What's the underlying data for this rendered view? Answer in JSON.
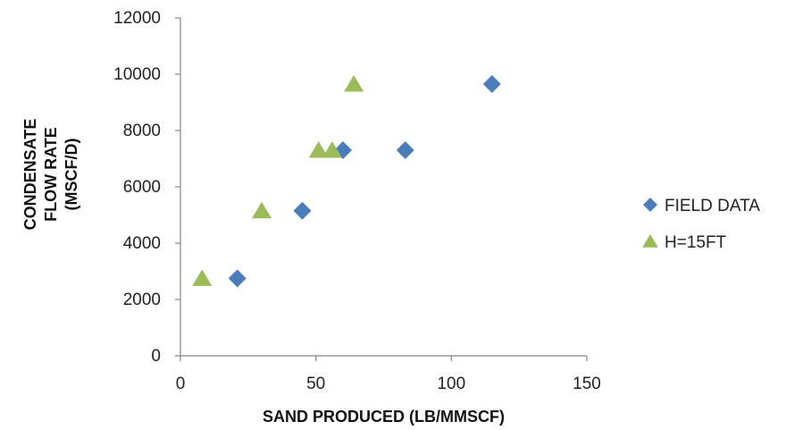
{
  "chart_data": {
    "type": "scatter",
    "title": "",
    "xlabel": "SAND PRODUCED (LB/MMSCF)",
    "ylabel": [
      "CONDENSATE",
      "FLOW RATE",
      "(MSCF/D)"
    ],
    "xlim": [
      0,
      150
    ],
    "ylim": [
      0,
      12000
    ],
    "x_ticks": [
      "0",
      "50",
      "100",
      "150"
    ],
    "y_ticks": [
      "0",
      "2000",
      "4000",
      "6000",
      "8000",
      "10000",
      "12000"
    ],
    "grid": false,
    "legend_position": "right",
    "series": [
      {
        "name": "FIELD DATA",
        "marker": "diamond",
        "color": "#4a7ebb",
        "points": [
          {
            "x": 21,
            "y": 2750
          },
          {
            "x": 45,
            "y": 5150
          },
          {
            "x": 60,
            "y": 7300
          },
          {
            "x": 83,
            "y": 7300
          },
          {
            "x": 115,
            "y": 9650
          }
        ]
      },
      {
        "name": "H=15FT",
        "marker": "triangle",
        "color": "#9bbb59",
        "points": [
          {
            "x": 8,
            "y": 2750
          },
          {
            "x": 30,
            "y": 5150
          },
          {
            "x": 51,
            "y": 7300
          },
          {
            "x": 56,
            "y": 7300
          },
          {
            "x": 64,
            "y": 9650
          }
        ]
      }
    ]
  }
}
